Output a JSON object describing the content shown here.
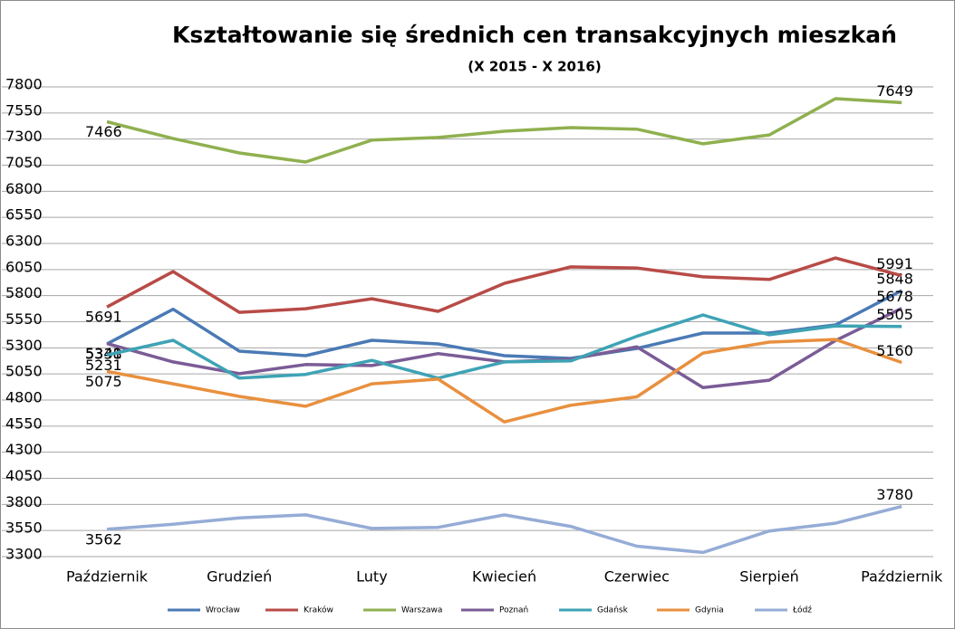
{
  "chart_data": {
    "type": "line",
    "title": "Kształtowanie się średnich cen transakcyjnych mieszkań",
    "subtitle": "(X 2015 - X 2016)",
    "categories": [
      "Październik",
      null,
      "Grudzień",
      null,
      "Luty",
      null,
      "Kwiecień",
      null,
      "Czerwiec",
      null,
      "Sierpień",
      null,
      "Październik"
    ],
    "ylim": [
      3300,
      7800
    ],
    "yticks": [
      3300,
      3550,
      3800,
      4050,
      4300,
      4550,
      4800,
      5050,
      5300,
      5550,
      5800,
      6050,
      6300,
      6550,
      6800,
      7050,
      7300,
      7550,
      7800
    ],
    "grid": true,
    "legend": "bottom",
    "series": [
      {
        "name": "Wrocław",
        "color": "#4a7ab5",
        "values": [
          5338,
          5670,
          5268,
          5225,
          5372,
          5338,
          5225,
          5199,
          5294,
          5442,
          5442,
          5520,
          5848
        ]
      },
      {
        "name": "Kraków",
        "color": "#b84b47",
        "values": [
          5691,
          6030,
          5640,
          5675,
          5770,
          5650,
          5918,
          6075,
          6065,
          5980,
          5955,
          6160,
          5991
        ]
      },
      {
        "name": "Warszawa",
        "color": "#8fb04f",
        "values": [
          7466,
          7305,
          7167,
          7080,
          7290,
          7315,
          7375,
          7410,
          7395,
          7255,
          7340,
          7687,
          7649
        ]
      },
      {
        "name": "Poznań",
        "color": "#7a5c96",
        "values": [
          5341,
          5165,
          5052,
          5140,
          5130,
          5245,
          5165,
          5190,
          5310,
          4920,
          4990,
          5370,
          5678
        ]
      },
      {
        "name": "Gdańsk",
        "color": "#3ea3b5",
        "values": [
          5231,
          5372,
          5010,
          5045,
          5180,
          5010,
          5165,
          5175,
          5410,
          5615,
          5425,
          5510,
          5505
        ]
      },
      {
        "name": "Gdynia",
        "color": "#e8903f",
        "values": [
          5075,
          4955,
          4835,
          4740,
          4955,
          5000,
          4590,
          4750,
          4830,
          5250,
          5355,
          5380,
          5160
        ]
      },
      {
        "name": "Łódź",
        "color": "#95acd6",
        "values": [
          3562,
          3610,
          3670,
          3700,
          3570,
          3580,
          3700,
          3590,
          3400,
          3340,
          3545,
          3620,
          3780
        ]
      }
    ]
  }
}
